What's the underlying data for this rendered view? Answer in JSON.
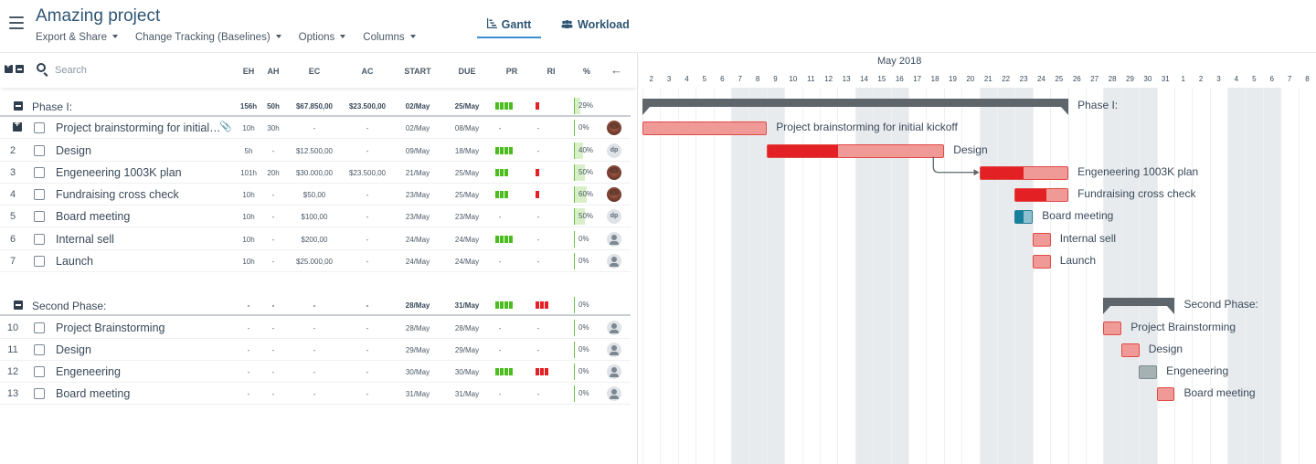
{
  "header": {
    "project_title": "Amazing project",
    "menu": [
      "Export & Share",
      "Change Tracking (Baselines)",
      "Options",
      "Columns"
    ],
    "tabs": [
      {
        "label": "Gantt",
        "icon": "gantt-chart-icon",
        "active": true
      },
      {
        "label": "Workload",
        "icon": "users-icon",
        "active": false
      }
    ]
  },
  "grid": {
    "search_placeholder": "Search",
    "columns": {
      "eh": "EH",
      "ah": "AH",
      "ec": "EC",
      "ac": "AC",
      "start": "START",
      "due": "DUE",
      "pr": "PR",
      "ri": "RI",
      "pct": "%"
    },
    "rows": [
      {
        "kind": "phase",
        "name": "Phase I:",
        "eh": "156h",
        "ah": "50h",
        "ec": "$67.850,00",
        "ac": "$23.500,00",
        "start": "02/May",
        "due": "25/May",
        "pr": 4,
        "ri": 1,
        "pct_label": "29%",
        "pct": 29
      },
      {
        "kind": "task",
        "num": "",
        "name": "Project brainstorming for initial…",
        "eh": "10h",
        "ah": "30h",
        "ec": "-",
        "ac": "-",
        "start": "02/May",
        "due": "08/May",
        "pr": 0,
        "ri": 0,
        "pct_label": "0%",
        "pct": 0,
        "avatar": "photo",
        "expandable": true,
        "attachment": true
      },
      {
        "kind": "task",
        "num": "2",
        "name": "Design",
        "eh": "5h",
        "ah": "-",
        "ec": "$12.500,00",
        "ac": "-",
        "start": "09/May",
        "due": "18/May",
        "pr": 4,
        "ri": 0,
        "pct_label": "40%",
        "pct": 40,
        "avatar": "initials",
        "avatar_text": "dp"
      },
      {
        "kind": "task",
        "num": "3",
        "name": "Engeneering 1003K plan",
        "eh": "101h",
        "ah": "20h",
        "ec": "$30.000,00",
        "ac": "$23.500,00",
        "start": "21/May",
        "due": "25/May",
        "pr": 3,
        "ri": 1,
        "pct_label": "50%",
        "pct": 50,
        "avatar": "photo"
      },
      {
        "kind": "task",
        "num": "4",
        "name": "Fundraising cross check",
        "eh": "10h",
        "ah": "-",
        "ec": "$50,00",
        "ac": "-",
        "start": "23/May",
        "due": "25/May",
        "pr": 3,
        "ri": 1,
        "pct_label": "60%",
        "pct": 60,
        "avatar": "photo"
      },
      {
        "kind": "task",
        "num": "5",
        "name": "Board meeting",
        "eh": "10h",
        "ah": "-",
        "ec": "$100,00",
        "ac": "-",
        "start": "23/May",
        "due": "23/May",
        "pr": 0,
        "ri": 0,
        "pct_label": "50%",
        "pct": 50,
        "avatar": "initials",
        "avatar_text": "dp"
      },
      {
        "kind": "task",
        "num": "6",
        "name": "Internal sell",
        "eh": "10h",
        "ah": "-",
        "ec": "$200,00",
        "ac": "-",
        "start": "24/May",
        "due": "24/May",
        "pr": 4,
        "ri": 0,
        "pct_label": "0%",
        "pct": 0,
        "avatar": "person"
      },
      {
        "kind": "task",
        "num": "7",
        "name": "Launch",
        "eh": "10h",
        "ah": "-",
        "ec": "$25.000,00",
        "ac": "-",
        "start": "24/May",
        "due": "24/May",
        "pr": 0,
        "ri": 0,
        "pct_label": "0%",
        "pct": 0,
        "avatar": "person"
      },
      {
        "kind": "spacer"
      },
      {
        "kind": "phase",
        "name": "Second Phase:",
        "eh": "-",
        "ah": "-",
        "ec": "-",
        "ac": "-",
        "start": "28/May",
        "due": "31/May",
        "pr": 4,
        "ri": 3,
        "pct_label": "0%",
        "pct": 0
      },
      {
        "kind": "task",
        "num": "10",
        "name": "Project Brainstorming",
        "eh": "-",
        "ah": "-",
        "ec": "-",
        "ac": "-",
        "start": "28/May",
        "due": "28/May",
        "pr": 0,
        "ri": 0,
        "pct_label": "0%",
        "pct": 0,
        "avatar": "person"
      },
      {
        "kind": "task",
        "num": "11",
        "name": "Design",
        "eh": "-",
        "ah": "-",
        "ec": "-",
        "ac": "-",
        "start": "29/May",
        "due": "29/May",
        "pr": 0,
        "ri": 0,
        "pct_label": "0%",
        "pct": 0,
        "avatar": "person"
      },
      {
        "kind": "task",
        "num": "12",
        "name": "Engeneering",
        "eh": "-",
        "ah": "-",
        "ec": "-",
        "ac": "-",
        "start": "30/May",
        "due": "30/May",
        "pr": 4,
        "ri": 3,
        "pct_label": "0%",
        "pct": 0,
        "avatar": "person"
      },
      {
        "kind": "task",
        "num": "13",
        "name": "Board meeting",
        "eh": "-",
        "ah": "-",
        "ec": "-",
        "ac": "-",
        "start": "31/May",
        "due": "31/May",
        "pr": 0,
        "ri": 0,
        "pct_label": "0%",
        "pct": 0,
        "avatar": "person"
      }
    ]
  },
  "gantt": {
    "month_label": "May 2018",
    "days": [
      "2",
      "3",
      "4",
      "5",
      "6",
      "7",
      "8",
      "9",
      "10",
      "11",
      "12",
      "13",
      "14",
      "15",
      "16",
      "17",
      "18",
      "19",
      "20",
      "21",
      "22",
      "23",
      "24",
      "25",
      "26",
      "27",
      "28",
      "29",
      "30",
      "31",
      "1",
      "2",
      "3",
      "4",
      "5",
      "6",
      "7",
      "8"
    ],
    "weekend_days": [
      5,
      6,
      12,
      13,
      19,
      20,
      26,
      27,
      33,
      34
    ],
    "colors": {
      "bar": "#f09a97",
      "progress": "#e32124",
      "teal": "#15809b",
      "grey": "#a5b1b3",
      "summary": "#5e656b",
      "pr_green": "#4bbd1f",
      "ri_red": "#e32124"
    },
    "items": [
      {
        "row": 0,
        "kind": "summary",
        "start": 0,
        "end": 24,
        "label": "Phase I:"
      },
      {
        "row": 1,
        "kind": "bar",
        "start": 0,
        "end": 7,
        "progress": 0,
        "label": "Project brainstorming for initial kickoff"
      },
      {
        "row": 2,
        "kind": "bar",
        "start": 7,
        "end": 17,
        "progress": 40,
        "label": "Design"
      },
      {
        "row": 3,
        "kind": "bar",
        "start": 19,
        "end": 24,
        "progress": 50,
        "label": "Engeneering 1003K plan"
      },
      {
        "row": 4,
        "kind": "bar",
        "start": 21,
        "end": 24,
        "progress": 60,
        "label": "Fundraising cross check"
      },
      {
        "row": 5,
        "kind": "bar",
        "color": "teal",
        "start": 21,
        "end": 22,
        "progress": 50,
        "label": "Board meeting"
      },
      {
        "row": 6,
        "kind": "bar",
        "start": 22,
        "end": 23,
        "progress": 0,
        "label": "Internal sell"
      },
      {
        "row": 7,
        "kind": "bar",
        "start": 22,
        "end": 23,
        "progress": 0,
        "label": "Launch"
      },
      {
        "row": 9,
        "kind": "summary",
        "start": 26,
        "end": 30,
        "label": "Second Phase:"
      },
      {
        "row": 10,
        "kind": "bar",
        "start": 26,
        "end": 27,
        "progress": 0,
        "label": "Project Brainstorming"
      },
      {
        "row": 11,
        "kind": "bar",
        "start": 27,
        "end": 28,
        "progress": 0,
        "label": "Design"
      },
      {
        "row": 12,
        "kind": "bar",
        "color": "grey",
        "start": 28,
        "end": 29,
        "progress": 0,
        "label": "Engeneering"
      },
      {
        "row": 13,
        "kind": "bar",
        "start": 29,
        "end": 30,
        "progress": 0,
        "label": "Board meeting"
      }
    ],
    "dependencies": [
      {
        "from": 2,
        "to": 3
      }
    ]
  }
}
